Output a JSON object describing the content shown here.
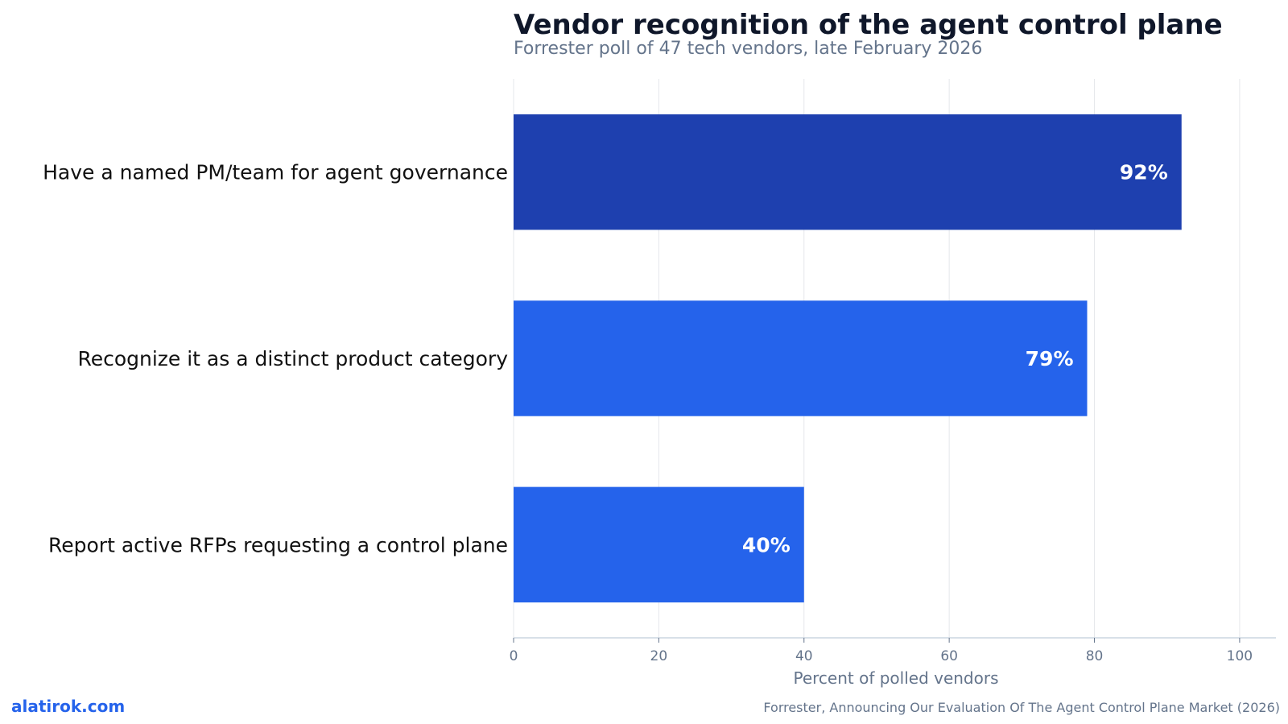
{
  "chart_data": {
    "type": "bar",
    "orientation": "horizontal",
    "title": "Vendor recognition of the agent control plane",
    "subtitle": "Forrester poll of 47 tech vendors, late February 2026",
    "categories": [
      "Have a named PM/team for agent governance",
      "Recognize it as a distinct product category",
      "Report active RFPs requesting a control plane"
    ],
    "values": [
      92,
      79,
      40
    ],
    "value_labels": [
      "92%",
      "79%",
      "40%"
    ],
    "bar_colors": [
      "#1e40af",
      "#2563eb",
      "#2563eb"
    ],
    "xlabel": "Percent of polled vendors",
    "xlim": [
      0,
      105
    ],
    "xticks": [
      0,
      20,
      40,
      60,
      80,
      100
    ],
    "xtick_labels": [
      "0",
      "20",
      "40",
      "60",
      "80",
      "100"
    ],
    "grid": true,
    "legend": false
  },
  "footer": {
    "brand": "alatirok.com",
    "source": "Forrester, Announcing Our Evaluation Of The Agent Control Plane Market (2026)"
  },
  "colors": {
    "title": "#0f172a",
    "muted": "#64748b",
    "grid": "#e5e7eb",
    "axis": "#cbd5e1",
    "brand": "#2563eb"
  }
}
